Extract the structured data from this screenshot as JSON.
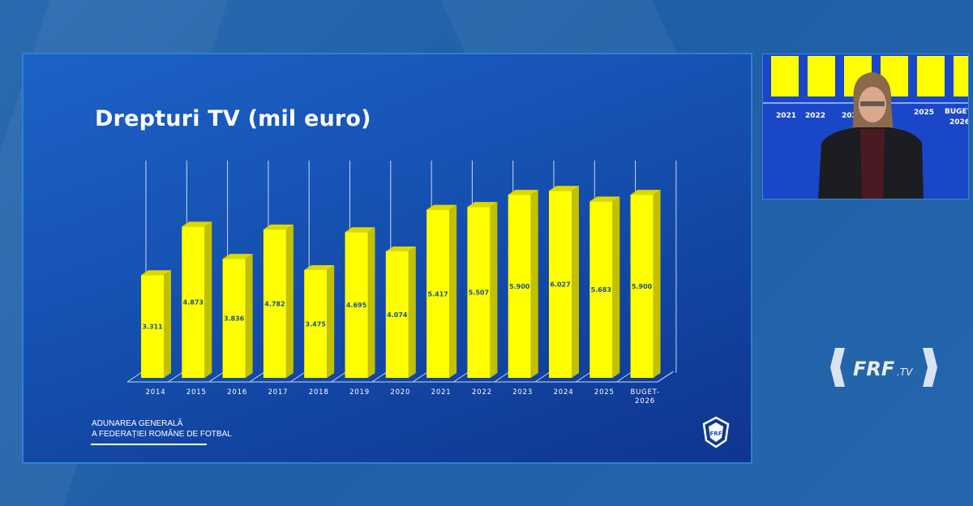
{
  "slide": {
    "title": "Drepturi TV (mil euro)",
    "footer_line1": "ADUNAREA GENERALĂ",
    "footer_line2": "A FEDERAȚIEI ROMÂNE DE FOTBAL",
    "crest_text": "FRF"
  },
  "chart_data": {
    "type": "bar",
    "style": "3d",
    "title": "Drepturi TV (mil euro)",
    "categories": [
      "2014",
      "2015",
      "2016",
      "2017",
      "2018",
      "2019",
      "2020",
      "2021",
      "2022",
      "2023",
      "2024",
      "2025",
      "BUGET-2026"
    ],
    "category_labels": [
      [
        "2014"
      ],
      [
        "2015"
      ],
      [
        "2016"
      ],
      [
        "2017"
      ],
      [
        "2018"
      ],
      [
        "2019"
      ],
      [
        "2020"
      ],
      [
        "2021"
      ],
      [
        "2022"
      ],
      [
        "2023"
      ],
      [
        "2024"
      ],
      [
        "2025"
      ],
      [
        "BUGET-",
        "2026"
      ]
    ],
    "values": [
      3.311,
      4.873,
      3.836,
      4.782,
      3.475,
      4.695,
      4.074,
      5.417,
      5.507,
      5.9,
      6.027,
      5.683,
      5.9
    ],
    "data_labels": [
      "3.311",
      "4.873",
      "3.836",
      "4.782",
      "3.475",
      "4.695",
      "4.074",
      "5.417",
      "5.507",
      "5.900",
      "6.027",
      "5.683",
      "5.900"
    ],
    "ylim": [
      0,
      7
    ],
    "grid": true,
    "bar_color": "#ffff00",
    "label_color": "#1a4f9a"
  },
  "inset": {
    "labels": [
      "2021",
      "2022",
      "202",
      "2025",
      "BUGET-",
      "2026"
    ]
  },
  "broadcast_logo": {
    "main": "FRF",
    "suffix": ".TV"
  }
}
